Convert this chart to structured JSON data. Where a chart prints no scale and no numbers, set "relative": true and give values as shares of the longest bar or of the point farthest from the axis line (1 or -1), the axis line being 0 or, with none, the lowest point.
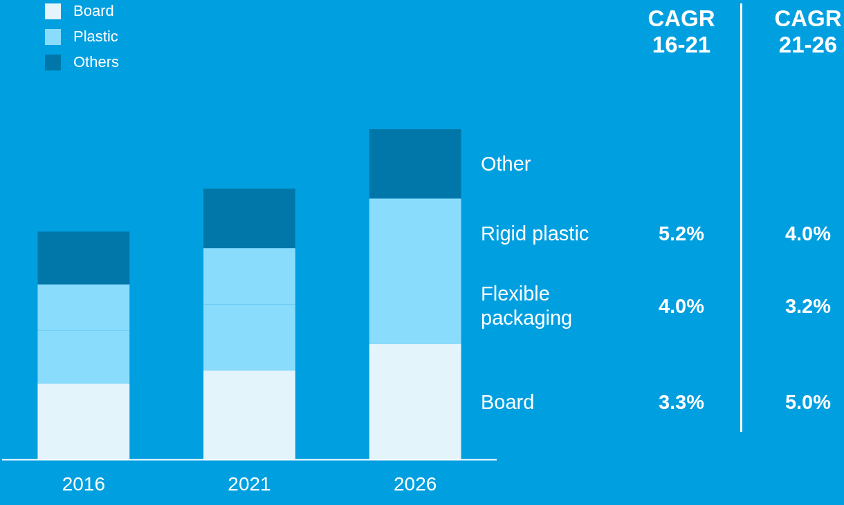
{
  "chart_data": {
    "type": "bar",
    "stacked": true,
    "relative": true,
    "legend": "top left",
    "categories": [
      "2016",
      "2021",
      "2026"
    ],
    "series": [
      {
        "name": "Board",
        "color": "#e3f4fb",
        "values": [
          0.23,
          0.27,
          0.35
        ]
      },
      {
        "name": "Plastic",
        "color": "#8adcfd",
        "values": [
          0.16,
          0.2,
          0.23
        ]
      },
      {
        "color": "#8adcfd",
        "values": [
          0.14,
          0.17,
          0.21
        ]
      },
      {
        "name": "Others",
        "color": "#0077a8",
        "values": [
          0.16,
          0.18,
          0.21
        ]
      }
    ],
    "annotations": [
      "Other",
      "Rigid plastic",
      "Flexible packaging",
      "Board",
      "CAGR 16-21",
      "CAGR 21-26",
      "5.2%",
      "4.0%",
      "4.0%",
      "3.2%",
      "3.3%",
      "5.0%"
    ]
  }
}
